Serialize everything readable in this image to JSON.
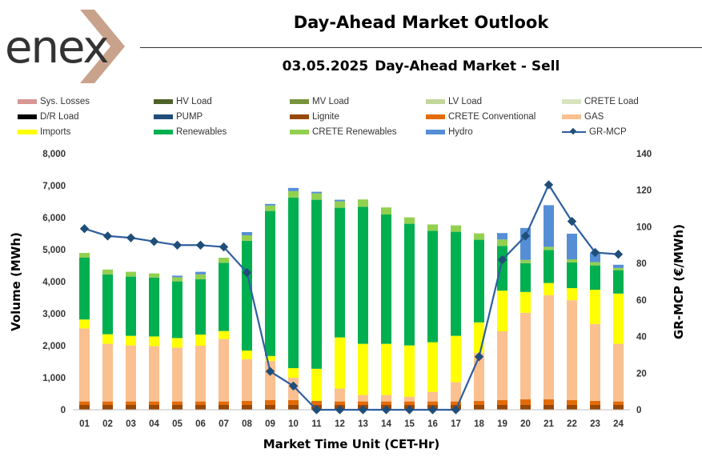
{
  "header": {
    "title": "Day-Ahead Market Outlook",
    "date": "03.05.2025",
    "subtitle": "Day-Ahead Market - Sell"
  },
  "logo": {
    "text": "enex"
  },
  "legend": [
    {
      "name": "Sys. Losses",
      "color": "#d99694",
      "kind": "bar"
    },
    {
      "name": "HV Load",
      "color": "#4f6228",
      "kind": "bar"
    },
    {
      "name": "MV Load",
      "color": "#77933c",
      "kind": "bar"
    },
    {
      "name": "LV Load",
      "color": "#c3d69b",
      "kind": "bar"
    },
    {
      "name": "CRETE Load",
      "color": "#d7e4bd",
      "kind": "bar"
    },
    {
      "name": "D/R Load",
      "color": "#000000",
      "kind": "bar"
    },
    {
      "name": "PUMP",
      "color": "#1f4e79",
      "kind": "bar"
    },
    {
      "name": "Lignite",
      "color": "#984807",
      "kind": "bar"
    },
    {
      "name": "CRETE Conventional",
      "color": "#e36c09",
      "kind": "bar"
    },
    {
      "name": "GAS",
      "color": "#fac090",
      "kind": "bar"
    },
    {
      "name": "Imports",
      "color": "#ffff00",
      "kind": "bar"
    },
    {
      "name": "Renewables",
      "color": "#00b050",
      "kind": "bar"
    },
    {
      "name": "CRETE Renewables",
      "color": "#92d050",
      "kind": "bar"
    },
    {
      "name": "Hydro",
      "color": "#558ed5",
      "kind": "bar"
    },
    {
      "name": "GR-MCP",
      "color": "#1f4e79",
      "kind": "line"
    }
  ],
  "chart_data": {
    "type": "bar",
    "stacked": true,
    "title": "03.05.2025  Day-Ahead Market - Sell",
    "xlabel": "Market Time Unit (CET-Hr)",
    "ylabel": "Volume (MWh)",
    "y2label": "GR-MCP (€/MWh)",
    "ylim": [
      0,
      8000
    ],
    "y2lim": [
      0,
      140
    ],
    "yticks": [
      "0",
      "1,000",
      "2,000",
      "3,000",
      "4,000",
      "5,000",
      "6,000",
      "7,000",
      "8,000"
    ],
    "y2ticks": [
      "0",
      "20",
      "40",
      "60",
      "80",
      "100",
      "120",
      "140"
    ],
    "categories": [
      "01",
      "02",
      "03",
      "04",
      "05",
      "06",
      "07",
      "08",
      "09",
      "10",
      "11",
      "12",
      "13",
      "14",
      "15",
      "16",
      "17",
      "18",
      "19",
      "20",
      "21",
      "22",
      "23",
      "24"
    ],
    "series": [
      {
        "name": "Lignite",
        "color": "#984807",
        "values": [
          150,
          150,
          150,
          150,
          150,
          150,
          150,
          150,
          150,
          150,
          150,
          150,
          150,
          150,
          150,
          150,
          150,
          150,
          150,
          150,
          150,
          150,
          150,
          150
        ]
      },
      {
        "name": "CRETE Conventional",
        "color": "#e36c09",
        "values": [
          110,
          110,
          110,
          110,
          110,
          110,
          110,
          130,
          150,
          150,
          130,
          110,
          110,
          110,
          110,
          110,
          110,
          130,
          150,
          180,
          180,
          150,
          130,
          110
        ]
      },
      {
        "name": "GAS",
        "color": "#fac090",
        "values": [
          2280,
          1800,
          1750,
          1730,
          1680,
          1740,
          1950,
          1300,
          1230,
          700,
          0,
          400,
          200,
          200,
          150,
          300,
          600,
          1500,
          2150,
          2700,
          3250,
          3120,
          2400,
          1800
        ]
      },
      {
        "name": "Imports",
        "color": "#ffff00",
        "values": [
          280,
          300,
          300,
          300,
          300,
          350,
          250,
          270,
          150,
          300,
          1000,
          1600,
          1600,
          1600,
          1600,
          1550,
          1450,
          950,
          1270,
          650,
          380,
          380,
          1070,
          1570
        ]
      },
      {
        "name": "Renewables",
        "color": "#00b050",
        "values": [
          1930,
          1870,
          1850,
          1840,
          1770,
          1730,
          2130,
          3430,
          4530,
          5330,
          5280,
          4050,
          4280,
          4040,
          3800,
          3480,
          3250,
          2580,
          1400,
          900,
          1030,
          800,
          760,
          730
        ]
      },
      {
        "name": "CRETE Renewables",
        "color": "#92d050",
        "values": [
          150,
          150,
          150,
          130,
          130,
          150,
          160,
          170,
          170,
          200,
          200,
          200,
          230,
          220,
          200,
          200,
          200,
          200,
          200,
          100,
          100,
          100,
          100,
          70
        ]
      },
      {
        "name": "Hydro",
        "color": "#558ed5",
        "values": [
          0,
          0,
          0,
          0,
          50,
          80,
          0,
          100,
          50,
          100,
          50,
          50,
          0,
          0,
          0,
          0,
          0,
          0,
          200,
          1000,
          1300,
          800,
          300,
          100
        ]
      }
    ],
    "line": {
      "name": "GR-MCP",
      "axis": "right",
      "color": "#2e5f9e",
      "values": [
        99,
        95,
        94,
        92,
        90,
        90,
        89,
        75,
        21,
        13,
        0,
        0,
        0,
        0,
        0,
        0,
        0,
        29,
        82,
        95,
        123,
        103,
        86,
        85
      ]
    }
  }
}
